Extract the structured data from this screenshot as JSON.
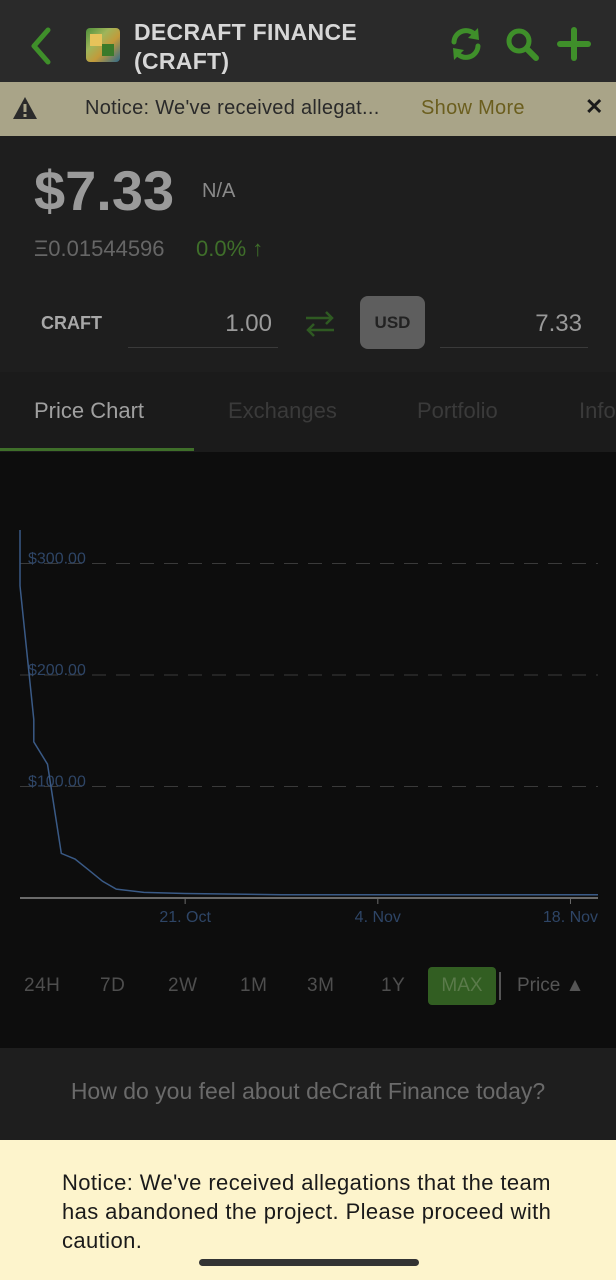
{
  "header": {
    "title": "DECRAFT FINANCE (CRAFT)",
    "back_icon": "chevron-left-icon",
    "refresh_icon": "refresh-icon",
    "search_icon": "search-icon",
    "add_icon": "plus-icon",
    "accent_color": "#3f8f2a"
  },
  "notice": {
    "text": "Notice: We've received allegat...",
    "show_more": "Show More",
    "close": "✕"
  },
  "price": {
    "value": "$7.33",
    "change_label": "N/A",
    "eth_value": "Ξ0.01544596",
    "eth_change": "0.0% ↑"
  },
  "converter": {
    "from_symbol": "CRAFT",
    "from_amount": "1.00",
    "to_currency": "USD",
    "to_amount": "7.33"
  },
  "tabs": [
    {
      "label": "Price Chart",
      "active": true
    },
    {
      "label": "Exchanges",
      "active": false
    },
    {
      "label": "Portfolio",
      "active": false
    },
    {
      "label": "Info",
      "active": false
    }
  ],
  "chart_data": {
    "type": "line",
    "x_ticks": [
      "21. Oct",
      "4. Nov",
      "18. Nov"
    ],
    "y_ticks": [
      "$100.00",
      "$200.00",
      "$300.00"
    ],
    "ylim": [
      0,
      330
    ],
    "grid": true,
    "series": [
      {
        "x": [
          "2020-10-09",
          "2020-10-09",
          "2020-10-10",
          "2020-10-10",
          "2020-10-11",
          "2020-10-12",
          "2020-10-13",
          "2020-10-14",
          "2020-10-15",
          "2020-10-16",
          "2020-10-18",
          "2020-10-21",
          "2020-10-28",
          "2020-11-04",
          "2020-11-11",
          "2020-11-18",
          "2020-11-20"
        ],
        "values": [
          330,
          280,
          160,
          140,
          120,
          40,
          35,
          25,
          15,
          8,
          5,
          4,
          3,
          3,
          3,
          3,
          3
        ]
      }
    ]
  },
  "ranges": [
    "24H",
    "7D",
    "2W",
    "1M",
    "3M",
    "1Y",
    "MAX"
  ],
  "active_range": "MAX",
  "price_toggle": "Price ▲",
  "sentiment": "How do you feel about deCraft Finance today?",
  "bottom_notice": "Notice: We've received allegations that the team has abandoned the project. Please proceed with caution."
}
